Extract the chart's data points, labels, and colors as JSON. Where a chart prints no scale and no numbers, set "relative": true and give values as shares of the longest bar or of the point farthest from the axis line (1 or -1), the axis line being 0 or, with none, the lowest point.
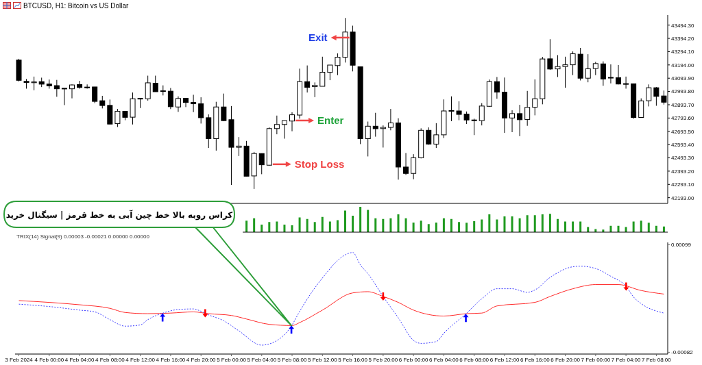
{
  "chart_data": [
    {
      "type": "candlestick",
      "title": "BTCUSD, H1: Bitcoin vs US Dollar",
      "x": [
        "2024-02-03T20:00",
        "2024-02-03T21:00",
        "2024-02-03T22:00",
        "2024-02-03T23:00",
        "2024-02-04T00:00",
        "2024-02-04T01:00",
        "2024-02-04T02:00",
        "2024-02-04T03:00",
        "2024-02-04T04:00",
        "2024-02-04T05:00",
        "2024-02-04T06:00",
        "2024-02-04T07:00",
        "2024-02-04T08:00",
        "2024-02-04T09:00",
        "2024-02-04T10:00",
        "2024-02-04T11:00",
        "2024-02-04T12:00",
        "2024-02-04T13:00",
        "2024-02-04T14:00",
        "2024-02-04T15:00",
        "2024-02-04T16:00",
        "2024-02-04T17:00",
        "2024-02-04T18:00",
        "2024-02-04T19:00",
        "2024-02-04T20:00",
        "2024-02-04T21:00",
        "2024-02-04T22:00",
        "2024-02-04T23:00",
        "2024-02-05T00:00",
        "2024-02-05T01:00",
        "2024-02-05T02:00",
        "2024-02-05T03:00",
        "2024-02-05T04:00",
        "2024-02-05T05:00",
        "2024-02-05T06:00",
        "2024-02-05T07:00",
        "2024-02-05T08:00",
        "2024-02-05T09:00",
        "2024-02-05T10:00",
        "2024-02-05T11:00",
        "2024-02-05T12:00",
        "2024-02-05T13:00",
        "2024-02-05T14:00",
        "2024-02-05T15:00",
        "2024-02-05T16:00",
        "2024-02-05T17:00",
        "2024-02-05T18:00",
        "2024-02-05T19:00",
        "2024-02-05T20:00",
        "2024-02-05T21:00",
        "2024-02-05T22:00",
        "2024-02-05T23:00",
        "2024-02-06T00:00",
        "2024-02-06T01:00",
        "2024-02-06T02:00",
        "2024-02-06T03:00",
        "2024-02-06T04:00",
        "2024-02-06T05:00",
        "2024-02-06T06:00",
        "2024-02-06T07:00",
        "2024-02-06T08:00",
        "2024-02-06T09:00",
        "2024-02-06T10:00",
        "2024-02-06T11:00",
        "2024-02-06T12:00",
        "2024-02-06T13:00",
        "2024-02-06T14:00",
        "2024-02-06T15:00",
        "2024-02-06T16:00",
        "2024-02-06T17:00",
        "2024-02-06T18:00",
        "2024-02-06T19:00",
        "2024-02-06T20:00",
        "2024-02-06T21:00",
        "2024-02-06T22:00",
        "2024-02-06T23:00",
        "2024-02-07T00:00",
        "2024-02-07T01:00",
        "2024-02-07T02:00",
        "2024-02-07T03:00",
        "2024-02-07T04:00",
        "2024-02-07T05:00",
        "2024-02-07T06:00",
        "2024-02-07T07:00",
        "2024-02-07T08:00",
        "2024-02-07T09:00"
      ],
      "ohlc": [
        [
          43231,
          43240,
          43070,
          43078
        ],
        [
          43070,
          43088,
          43015,
          43062
        ],
        [
          43060,
          43106,
          43003,
          43066
        ],
        [
          43068,
          43098,
          43027,
          43049
        ],
        [
          43050,
          43084,
          43015,
          43036
        ],
        [
          43038,
          43081,
          42954,
          43014
        ],
        [
          43018,
          43018,
          42891,
          43013
        ],
        [
          43014,
          43047,
          42942,
          43043
        ],
        [
          43046,
          43074,
          43015,
          43024
        ],
        [
          43027,
          43047,
          43015,
          43022
        ],
        [
          43028,
          43028,
          42906,
          42919
        ],
        [
          42924,
          42961,
          42866,
          42888
        ],
        [
          42889,
          42933,
          42748,
          42748
        ],
        [
          42752,
          42862,
          42726,
          42844
        ],
        [
          42844,
          42844,
          42777,
          42799
        ],
        [
          42800,
          42986,
          42745,
          42939
        ],
        [
          42939,
          42942,
          42869,
          42942
        ],
        [
          42939,
          43113,
          42925,
          43059
        ],
        [
          43056,
          43113,
          42992,
          42992
        ],
        [
          42999,
          43040,
          42964,
          42995
        ],
        [
          42996,
          43020,
          42861,
          42879
        ],
        [
          42877,
          42957,
          42840,
          42941
        ],
        [
          42942,
          42942,
          42876,
          42911
        ],
        [
          42911,
          42969,
          42838,
          42901
        ],
        [
          42901,
          42950,
          42752,
          42796
        ],
        [
          42796,
          42821,
          42568,
          42638
        ],
        [
          42638,
          42916,
          42548,
          42877
        ],
        [
          42877,
          42978,
          42771,
          42774
        ],
        [
          42781,
          42884,
          42289,
          42573
        ],
        [
          42573,
          42650,
          42507,
          42582
        ],
        [
          42582,
          42621,
          42355,
          42355
        ],
        [
          42357,
          42538,
          42259,
          42526
        ],
        [
          42526,
          42526,
          42370,
          42441
        ],
        [
          42438,
          42723,
          42435,
          42714
        ],
        [
          42714,
          42812,
          42671,
          42745
        ],
        [
          42745,
          42774,
          42638,
          42774
        ],
        [
          42771,
          42837,
          42694,
          42818
        ],
        [
          42816,
          43166,
          42789,
          43068
        ],
        [
          43068,
          43190,
          42986,
          43025
        ],
        [
          43030,
          43062,
          42951,
          43040
        ],
        [
          43033,
          43256,
          43033,
          43139
        ],
        [
          43138,
          43193,
          43079,
          43193
        ],
        [
          43189,
          43281,
          43117,
          43252
        ],
        [
          43252,
          43548,
          43212,
          43442
        ],
        [
          43442,
          43490,
          43145,
          43192
        ],
        [
          43180,
          43180,
          42597,
          42638
        ],
        [
          42638,
          42767,
          42504,
          42732
        ],
        [
          42732,
          42833,
          42653,
          42713
        ],
        [
          42714,
          42738,
          42571,
          42723
        ],
        [
          42723,
          42862,
          42701,
          42757
        ],
        [
          42757,
          42792,
          42329,
          42424
        ],
        [
          42424,
          42530,
          42365,
          42376
        ],
        [
          42376,
          42521,
          42332,
          42494
        ],
        [
          42494,
          42716,
          42489,
          42701
        ],
        [
          42701,
          42723,
          42592,
          42597
        ],
        [
          42597,
          42755,
          42568,
          42667
        ],
        [
          42667,
          42934,
          42643,
          42847
        ],
        [
          42847,
          42957,
          42770,
          42850
        ],
        [
          42847,
          42920,
          42777,
          42821
        ],
        [
          42823,
          42843,
          42749,
          42779
        ],
        [
          42779,
          42789,
          42665,
          42774
        ],
        [
          42774,
          42906,
          42738,
          42884
        ],
        [
          42882,
          43084,
          42878,
          43068
        ],
        [
          43068,
          43103,
          42939,
          42989
        ],
        [
          42989,
          43099,
          42682,
          42794
        ],
        [
          42794,
          42852,
          42687,
          42827
        ],
        [
          42827,
          42893,
          42657,
          42781
        ],
        [
          42783,
          42998,
          42735,
          42874
        ],
        [
          42875,
          43085,
          42814,
          42939
        ],
        [
          42939,
          43255,
          42897,
          43239
        ],
        [
          43240,
          43388,
          43157,
          43163
        ],
        [
          43164,
          43268,
          43103,
          43182
        ],
        [
          43182,
          43256,
          43022,
          43195
        ],
        [
          43195,
          43296,
          43117,
          43278
        ],
        [
          43275,
          43322,
          43077,
          43094
        ],
        [
          43094,
          43275,
          43063,
          43165
        ],
        [
          43167,
          43217,
          43117,
          43204
        ],
        [
          43202,
          43221,
          43037,
          43088
        ],
        [
          43100,
          43198,
          43055,
          43095
        ],
        [
          43098,
          43193,
          43047,
          43050
        ],
        [
          43053,
          43106,
          43015,
          43050
        ],
        [
          43052,
          43052,
          42789,
          42798
        ],
        [
          42798,
          42942,
          42796,
          42923
        ],
        [
          42924,
          43047,
          42881,
          43022
        ],
        [
          43022,
          43027,
          42886,
          42957
        ],
        [
          42960,
          43001,
          42895,
          42913
        ]
      ],
      "xlim": [
        "2024-02-03T19:30",
        "2024-02-07T09:30"
      ],
      "ylim": [
        42150,
        43570
      ],
      "yticks": [
        {
          "value": 43494.3,
          "label": "43494.30"
        },
        {
          "value": 43394.2,
          "label": "43394.20"
        },
        {
          "value": 43294.1,
          "label": "43294.10"
        },
        {
          "value": 43194,
          "label": "43194.00"
        },
        {
          "value": 43093.9,
          "label": "43093.90"
        },
        {
          "value": 42993.8,
          "label": "42993.80"
        },
        {
          "value": 42893.7,
          "label": "42893.70"
        },
        {
          "value": 42793.6,
          "label": "42793.60"
        },
        {
          "value": 42693.5,
          "label": "42693.50"
        },
        {
          "value": 42593.4,
          "label": "42593.40"
        },
        {
          "value": 42493.3,
          "label": "42493.30"
        },
        {
          "value": 42393.2,
          "label": "42393.20"
        },
        {
          "value": 42293.1,
          "label": "42293.10"
        },
        {
          "value": 42193,
          "label": "42193.00"
        }
      ],
      "tick_labels": "y",
      "annotations": [
        {
          "text": "Exit",
          "x": "2024-02-05T16:00",
          "y": 43400
        },
        {
          "text": "Enter",
          "x": "2024-02-05T08:00",
          "y": 42775
        },
        {
          "text": "Stop Loss",
          "x": "2024-02-05T05:00",
          "y": 42445
        }
      ]
    },
    {
      "type": "bar",
      "relative": true,
      "color": "#1f9a1f",
      "tick_labels": false,
      "categories": [
        null,
        null,
        null,
        null,
        null,
        null,
        null,
        null,
        null,
        null,
        null,
        null,
        null,
        null,
        null,
        null,
        null,
        null,
        null,
        null,
        null,
        null,
        null,
        null,
        null,
        null,
        null,
        null,
        null,
        null,
        null,
        null,
        null,
        null,
        null,
        null,
        null,
        null,
        null,
        null,
        null,
        null,
        null,
        null,
        null,
        null,
        null,
        null,
        null,
        null,
        null,
        null,
        null,
        null,
        null,
        null
      ],
      "values": [
        0.45,
        0.55,
        0.3,
        0.4,
        0.42,
        0.3,
        0.27,
        0.58,
        0.52,
        0.4,
        0.6,
        0.42,
        0.47,
        0.85,
        0.65,
        1,
        0.88,
        0.55,
        0.52,
        0.55,
        0.7,
        0.55,
        0.38,
        0.45,
        0.32,
        0.38,
        0.55,
        0.52,
        0.4,
        0.37,
        0.43,
        0.5,
        0.7,
        0.5,
        0.62,
        0.62,
        0.55,
        0.67,
        0.67,
        0.7,
        0.72,
        0.52,
        0.42,
        0.42,
        0.42,
        0.2,
        0.12,
        0.1,
        0.25,
        0.25,
        0.2,
        0.42,
        0.45,
        0.37,
        0.25,
        0.22
      ]
    },
    {
      "type": "line",
      "title": "TRIX(14) Signal(9) 0.00003 -0.00021 0.00000 0.00000",
      "marker": "none",
      "series": [
        {
          "color": "#ff2a2a",
          "line_style": "solid",
          "x": [
            "2024-02-03T20:00",
            "2024-02-04T00:00",
            "2024-02-04T04:00",
            "2024-02-04T08:00",
            "2024-02-04T10:00",
            "2024-02-04T13:00",
            "2024-02-04T16:00",
            "2024-02-04T19:00",
            "2024-02-04T21:00",
            "2024-02-05T00:00",
            "2024-02-05T02:00",
            "2024-02-05T05:00",
            "2024-02-05T08:00",
            "2024-02-05T09:00",
            "2024-02-05T12:00",
            "2024-02-05T16:00",
            "2024-02-05T18:00",
            "2024-02-05T20:00",
            "2024-02-05T22:00",
            "2024-02-06T00:00",
            "2024-02-06T04:00",
            "2024-02-06T07:00",
            "2024-02-06T09:00",
            "2024-02-06T11:00",
            "2024-02-06T16:00",
            "2024-02-06T18:00",
            "2024-02-06T21:00",
            "2024-02-07T00:00",
            "2024-02-07T03:00",
            "2024-02-07T06:00",
            "2024-02-07T09:00"
          ],
          "values": [
            5e-05,
            2e-05,
            -2e-05,
            -8e-05,
            -0.00015,
            -0.00017,
            -0.00016,
            -0.00014,
            -0.00017,
            -0.0002,
            -0.00026,
            -0.00035,
            -0.00037,
            -0.00032,
            -0.00011,
            0.00018,
            0.0002,
            0.00012,
            2e-05,
            -0.00011,
            -0.00021,
            -0.00017,
            -0.00016,
            -4e-05,
            2e-05,
            0.00012,
            0.00025,
            0.00032,
            0.00032,
            0.00022,
            0.00016
          ]
        },
        {
          "color": "#3c3cff",
          "line_style": "dotted",
          "x": [
            "2024-02-03T20:00",
            "2024-02-04T00:00",
            "2024-02-04T04:00",
            "2024-02-04T06:00",
            "2024-02-04T08:00",
            "2024-02-04T10:00",
            "2024-02-04T12:00",
            "2024-02-04T13:00",
            "2024-02-04T15:00",
            "2024-02-04T17:00",
            "2024-02-04T19:00",
            "2024-02-04T20:00",
            "2024-02-04T21:00",
            "2024-02-04T23:00",
            "2024-02-05T01:00",
            "2024-02-05T04:00",
            "2024-02-05T05:00",
            "2024-02-05T08:00",
            "2024-02-05T09:00",
            "2024-02-05T12:00",
            "2024-02-05T15:00",
            "2024-02-05T16:00",
            "2024-02-05T17:00",
            "2024-02-05T18:00",
            "2024-02-05T20:00",
            "2024-02-05T22:00",
            "2024-02-06T00:00",
            "2024-02-06T01:00",
            "2024-02-06T03:00",
            "2024-02-06T04:00",
            "2024-02-06T07:00",
            "2024-02-06T09:00",
            "2024-02-06T11:00",
            "2024-02-06T13:00",
            "2024-02-06T15:00",
            "2024-02-06T16:00",
            "2024-02-06T18:00",
            "2024-02-06T21:00",
            "2024-02-06T22:00",
            "2024-02-07T00:00",
            "2024-02-07T02:00",
            "2024-02-07T04:00",
            "2024-02-07T05:00",
            "2024-02-07T06:00",
            "2024-02-07T09:00"
          ],
          "values": [
            -1e-05,
            -5e-05,
            -0.00011,
            -0.00014,
            -0.00027,
            -0.00038,
            -0.00036,
            -0.00027,
            -0.00016,
            -0.0001,
            -9e-05,
            -0.00013,
            -0.00019,
            -0.00029,
            -0.00046,
            -0.0007,
            -0.00068,
            -0.00036,
            -0.00013,
            0.00043,
            0.00082,
            0.00086,
            0.00065,
            0.0005,
            0.00012,
            -0.00024,
            -0.00062,
            -0.00067,
            -0.00064,
            -0.0005,
            -0.00016,
            8e-05,
            0.00025,
            0.00025,
            0.00019,
            0.00023,
            0.00044,
            0.00062,
            0.00063,
            0.00059,
            0.00046,
            0.00029,
            0.00011,
            0,
            -0.00016
          ]
        }
      ],
      "xlim": [
        "2024-02-03T19:30",
        "2024-02-07T09:30"
      ],
      "xticks": [
        {
          "value": "2024-02-03T20:00",
          "label": "3 Feb 2024"
        },
        {
          "value": "2024-02-04T00:00",
          "label": "4 Feb 00:00"
        },
        {
          "value": "2024-02-04T04:00",
          "label": "4 Feb 04:00"
        },
        {
          "value": "2024-02-04T08:00",
          "label": "4 Feb 08:00"
        },
        {
          "value": "2024-02-04T12:00",
          "label": "4 Feb 12:00"
        },
        {
          "value": "2024-02-04T16:00",
          "label": "4 Feb 16:00"
        },
        {
          "value": "2024-02-04T20:00",
          "label": "4 Feb 20:00"
        },
        {
          "value": "2024-02-05T00:00",
          "label": "5 Feb 00:00"
        },
        {
          "value": "2024-02-05T04:00",
          "label": "5 Feb 04:00"
        },
        {
          "value": "2024-02-05T08:00",
          "label": "5 Feb 08:00"
        },
        {
          "value": "2024-02-05T12:00",
          "label": "5 Feb 12:00"
        },
        {
          "value": "2024-02-05T16:00",
          "label": "5 Feb 16:00"
        },
        {
          "value": "2024-02-05T20:00",
          "label": "5 Feb 20:00"
        },
        {
          "value": "2024-02-06T00:00",
          "label": "6 Feb 00:00"
        },
        {
          "value": "2024-02-06T04:00",
          "label": "6 Feb 04:00"
        },
        {
          "value": "2024-02-06T08:00",
          "label": "6 Feb 08:00"
        },
        {
          "value": "2024-02-06T12:00",
          "label": "6 Feb 12:00"
        },
        {
          "value": "2024-02-06T16:00",
          "label": "6 Feb 16:00"
        },
        {
          "value": "2024-02-06T20:00",
          "label": "6 Feb 20:00"
        },
        {
          "value": "2024-02-07T00:00",
          "label": "7 Feb 00:00"
        },
        {
          "value": "2024-02-07T04:00",
          "label": "7 Feb 04:00"
        },
        {
          "value": "2024-02-07T08:00",
          "label": "7 Feb 08:00"
        }
      ],
      "ylim": [
        -0.00085,
        0.00103
      ],
      "yticks": [
        0.00099,
        -0.00082
      ],
      "annotations": [
        "کراس روبه بالا خط چین آبی به خط قرمز | سیگنال خرید"
      ]
    }
  ]
}
